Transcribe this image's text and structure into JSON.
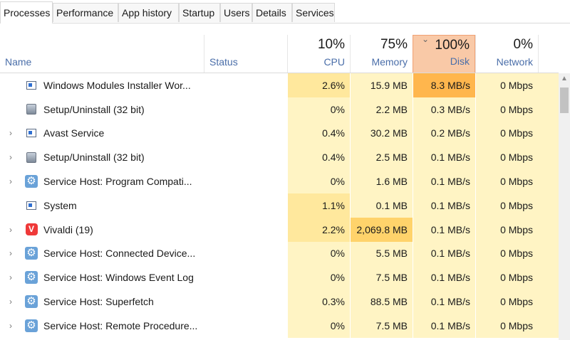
{
  "tabs": [
    {
      "label": "Processes",
      "active": true
    },
    {
      "label": "Performance"
    },
    {
      "label": "App history"
    },
    {
      "label": "Startup"
    },
    {
      "label": "Users"
    },
    {
      "label": "Details"
    },
    {
      "label": "Services"
    }
  ],
  "columns": {
    "name": "Name",
    "status": "Status",
    "cpu": {
      "label": "CPU",
      "pct": "10%"
    },
    "memory": {
      "label": "Memory",
      "pct": "75%"
    },
    "disk": {
      "label": "Disk",
      "pct": "100%",
      "sorted": true
    },
    "network": {
      "label": "Network",
      "pct": "0%"
    }
  },
  "heat_colors": {
    "cpu_light": "#fff4c4",
    "cpu_medium": "#ffe89d",
    "mem_light": "#fff4c4",
    "mem_high": "#ffd36b",
    "disk_light": "#fff4c4",
    "disk_high": "#ffb64d",
    "net": "#fff4c4"
  },
  "rows": [
    {
      "expand": "",
      "icon": "window-app-icon",
      "name": "Windows Modules Installer Wor...",
      "status": "",
      "cpu": "2.6%",
      "memory": "15.9 MB",
      "disk": "8.3 MB/s",
      "network": "0 Mbps"
    },
    {
      "expand": "",
      "icon": "setup-installer-icon",
      "name": "Setup/Uninstall (32 bit)",
      "status": "",
      "cpu": "0%",
      "memory": "2.2 MB",
      "disk": "0.3 MB/s",
      "network": "0 Mbps"
    },
    {
      "expand": "›",
      "icon": "window-app-icon",
      "name": "Avast Service",
      "status": "",
      "cpu": "0.4%",
      "memory": "30.2 MB",
      "disk": "0.2 MB/s",
      "network": "0 Mbps"
    },
    {
      "expand": "›",
      "icon": "setup-installer-icon",
      "name": "Setup/Uninstall (32 bit)",
      "status": "",
      "cpu": "0.4%",
      "memory": "2.5 MB",
      "disk": "0.1 MB/s",
      "network": "0 Mbps"
    },
    {
      "expand": "›",
      "icon": "service-gear-icon",
      "name": "Service Host: Program Compati...",
      "status": "",
      "cpu": "0%",
      "memory": "1.6 MB",
      "disk": "0.1 MB/s",
      "network": "0 Mbps"
    },
    {
      "expand": "",
      "icon": "window-app-icon",
      "name": "System",
      "status": "",
      "cpu": "1.1%",
      "memory": "0.1 MB",
      "disk": "0.1 MB/s",
      "network": "0 Mbps"
    },
    {
      "expand": "›",
      "icon": "vivaldi-icon",
      "name": "Vivaldi (19)",
      "status": "",
      "cpu": "2.2%",
      "memory": "2,069.8 MB",
      "disk": "0.1 MB/s",
      "network": "0 Mbps"
    },
    {
      "expand": "›",
      "icon": "service-gear-icon",
      "name": "Service Host: Connected Device...",
      "status": "",
      "cpu": "0%",
      "memory": "5.5 MB",
      "disk": "0.1 MB/s",
      "network": "0 Mbps"
    },
    {
      "expand": "›",
      "icon": "service-gear-icon",
      "name": "Service Host: Windows Event Log",
      "status": "",
      "cpu": "0%",
      "memory": "7.5 MB",
      "disk": "0.1 MB/s",
      "network": "0 Mbps"
    },
    {
      "expand": "›",
      "icon": "service-gear-icon",
      "name": "Service Host: Superfetch",
      "status": "",
      "cpu": "0.3%",
      "memory": "88.5 MB",
      "disk": "0.1 MB/s",
      "network": "0 Mbps"
    },
    {
      "expand": "›",
      "icon": "service-gear-icon",
      "name": "Service Host: Remote Procedure...",
      "status": "",
      "cpu": "0%",
      "memory": "7.5 MB",
      "disk": "0.1 MB/s",
      "network": "0 Mbps"
    }
  ]
}
